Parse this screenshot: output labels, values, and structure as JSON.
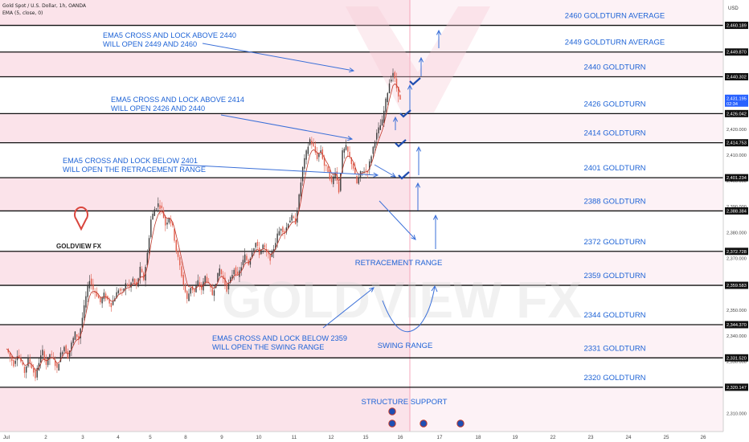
{
  "header": {
    "symbol": "Gold Spot / U.S. Dollar, 1h, OANDA",
    "indicator": "EMA (5, close, 0)"
  },
  "currency": "USD",
  "logo_text": "GOLDVIEW FX",
  "watermark": "GOLDVIEW FX",
  "colors": {
    "pink_zone": "#fbe3ea",
    "pink_line": "#f4a7bb",
    "level_text": "#1e63d6",
    "arrow": "#3a6fd8",
    "candle_up": "#3b3b3b",
    "candle_down": "#e25c4a",
    "logo_red": "#d9453d"
  },
  "chart_data": {
    "type": "candlestick",
    "y_axis": {
      "min": 2303,
      "max": 2470,
      "tick_labels": [
        "2,310.000",
        "2,320.000",
        "2,330.000",
        "2,340.000",
        "2,350.000",
        "2,360.000",
        "2,370.000",
        "2,380.000",
        "2,390.000",
        "2,400.000",
        "2,410.000",
        "2,420.000",
        "2,430.000"
      ],
      "level_badges": [
        "2,460.189",
        "2,449.870",
        "2,440.302",
        "2,426.042",
        "2,414.753",
        "2,401.234",
        "2,388.384",
        "2,372.728",
        "2,359.583",
        "2,344.370",
        "2,331.520",
        "2,320.147"
      ],
      "price_badge": {
        "price": "2,431.195",
        "countdown": "02:34"
      }
    },
    "x_axis": {
      "tick_labels": [
        "Jul",
        "2",
        "3",
        "4",
        "5",
        "8",
        "9",
        "10",
        "11",
        "12",
        "15",
        "16",
        "17",
        "18",
        "19",
        "22",
        "23",
        "24",
        "25",
        "26"
      ]
    },
    "levels": [
      {
        "price": 2460.189,
        "label": "2460 GOLDTURN AVERAGE"
      },
      {
        "price": 2449.87,
        "label": "2449 GOLDTURN AVERAGE"
      },
      {
        "price": 2440.302,
        "label": "2440 GOLDTURN"
      },
      {
        "price": 2426.042,
        "label": "2426 GOLDTURN"
      },
      {
        "price": 2414.753,
        "label": "2414 GOLDTURN"
      },
      {
        "price": 2401.234,
        "label": "2401 GOLDTURN"
      },
      {
        "price": 2388.384,
        "label": "2388 GOLDTURN"
      },
      {
        "price": 2372.728,
        "label": "2372 GOLDTURN"
      },
      {
        "price": 2359.583,
        "label": "2359 GOLDTURN"
      },
      {
        "price": 2344.37,
        "label": "2344 GOLDTURN"
      },
      {
        "price": 2331.52,
        "label": "2331 GOLDTURN"
      },
      {
        "price": 2320.147,
        "label": "2320 GOLDTURN"
      }
    ],
    "zones": [
      {
        "from": 2460.189,
        "to": 2470
      },
      {
        "from": 2440.302,
        "to": 2449.87
      },
      {
        "from": 2414.753,
        "to": 2426.042
      },
      {
        "from": 2388.384,
        "to": 2401.234
      },
      {
        "from": 2359.583,
        "to": 2372.728
      },
      {
        "from": 2331.52,
        "to": 2344.37
      },
      {
        "from": 2303,
        "to": 2320.147
      }
    ],
    "annotations": [
      {
        "lines": [
          "EMA5 CROSS AND LOCK ABOVE 2440",
          "WILL OPEN 2449 AND 2460"
        ]
      },
      {
        "lines": [
          "EMA5 CROSS AND LOCK ABOVE 2414",
          "WILL OPEN 2426 AND 2440"
        ]
      },
      {
        "lines": [
          "EMA5 CROSS AND LOCK BELOW 2401",
          "WILL OPEN THE RETRACEMENT RANGE"
        ]
      },
      {
        "lines": [
          "EMA5 CROSS AND LOCK BELOW 2359",
          "WILL OPEN THE SWING RANGE"
        ]
      }
    ],
    "range_labels": [
      "RETRACEMENT RANGE",
      "SWING RANGE",
      "STRUCTURE SUPPORT"
    ],
    "price_path": [
      [
        0,
        2335
      ],
      [
        2,
        2332
      ],
      [
        4,
        2329
      ],
      [
        6,
        2333
      ],
      [
        8,
        2330
      ],
      [
        10,
        2326
      ],
      [
        12,
        2331
      ],
      [
        14,
        2328
      ],
      [
        16,
        2324
      ],
      [
        18,
        2330
      ],
      [
        20,
        2334
      ],
      [
        22,
        2329
      ],
      [
        24,
        2333
      ],
      [
        26,
        2331
      ],
      [
        28,
        2327
      ],
      [
        30,
        2333
      ],
      [
        32,
        2336
      ],
      [
        34,
        2332
      ],
      [
        36,
        2337
      ],
      [
        38,
        2341
      ],
      [
        40,
        2339
      ],
      [
        42,
        2347
      ],
      [
        44,
        2355
      ],
      [
        46,
        2362
      ],
      [
        48,
        2358
      ],
      [
        50,
        2356
      ],
      [
        52,
        2353
      ],
      [
        54,
        2356
      ],
      [
        56,
        2354
      ],
      [
        58,
        2352
      ],
      [
        60,
        2355
      ],
      [
        62,
        2358
      ],
      [
        64,
        2357
      ],
      [
        66,
        2360
      ],
      [
        68,
        2359
      ],
      [
        70,
        2362
      ],
      [
        72,
        2359
      ],
      [
        74,
        2366
      ],
      [
        76,
        2362
      ],
      [
        78,
        2372
      ],
      [
        80,
        2385
      ],
      [
        82,
        2389
      ],
      [
        84,
        2391
      ],
      [
        86,
        2389
      ],
      [
        88,
        2383
      ],
      [
        90,
        2386
      ],
      [
        92,
        2382
      ],
      [
        94,
        2373
      ],
      [
        96,
        2367
      ],
      [
        98,
        2360
      ],
      [
        100,
        2354
      ],
      [
        102,
        2359
      ],
      [
        104,
        2357
      ],
      [
        106,
        2361
      ],
      [
        108,
        2358
      ],
      [
        110,
        2363
      ],
      [
        112,
        2360
      ],
      [
        114,
        2356
      ],
      [
        116,
        2361
      ],
      [
        118,
        2366
      ],
      [
        120,
        2362
      ],
      [
        122,
        2358
      ],
      [
        124,
        2362
      ],
      [
        126,
        2366
      ],
      [
        128,
        2363
      ],
      [
        130,
        2367
      ],
      [
        132,
        2371
      ],
      [
        134,
        2368
      ],
      [
        136,
        2373
      ],
      [
        138,
        2376
      ],
      [
        140,
        2372
      ],
      [
        142,
        2375
      ],
      [
        144,
        2372
      ],
      [
        146,
        2370
      ],
      [
        148,
        2374
      ],
      [
        150,
        2379
      ],
      [
        152,
        2382
      ],
      [
        154,
        2380
      ],
      [
        156,
        2384
      ],
      [
        158,
        2386
      ],
      [
        160,
        2384
      ],
      [
        162,
        2394
      ],
      [
        164,
        2405
      ],
      [
        166,
        2411
      ],
      [
        168,
        2416
      ],
      [
        170,
        2413
      ],
      [
        172,
        2409
      ],
      [
        174,
        2412
      ],
      [
        176,
        2406
      ],
      [
        178,
        2404
      ],
      [
        180,
        2399
      ],
      [
        182,
        2404
      ],
      [
        184,
        2396
      ],
      [
        186,
        2411
      ],
      [
        188,
        2413
      ],
      [
        190,
        2409
      ],
      [
        192,
        2405
      ],
      [
        194,
        2399
      ],
      [
        196,
        2403
      ],
      [
        198,
        2404
      ],
      [
        200,
        2404
      ],
      [
        202,
        2410
      ],
      [
        204,
        2416
      ],
      [
        206,
        2420
      ],
      [
        208,
        2423
      ],
      [
        210,
        2431
      ],
      [
        212,
        2438
      ],
      [
        214,
        2442
      ],
      [
        216,
        2436
      ],
      [
        218,
        2431
      ]
    ]
  }
}
